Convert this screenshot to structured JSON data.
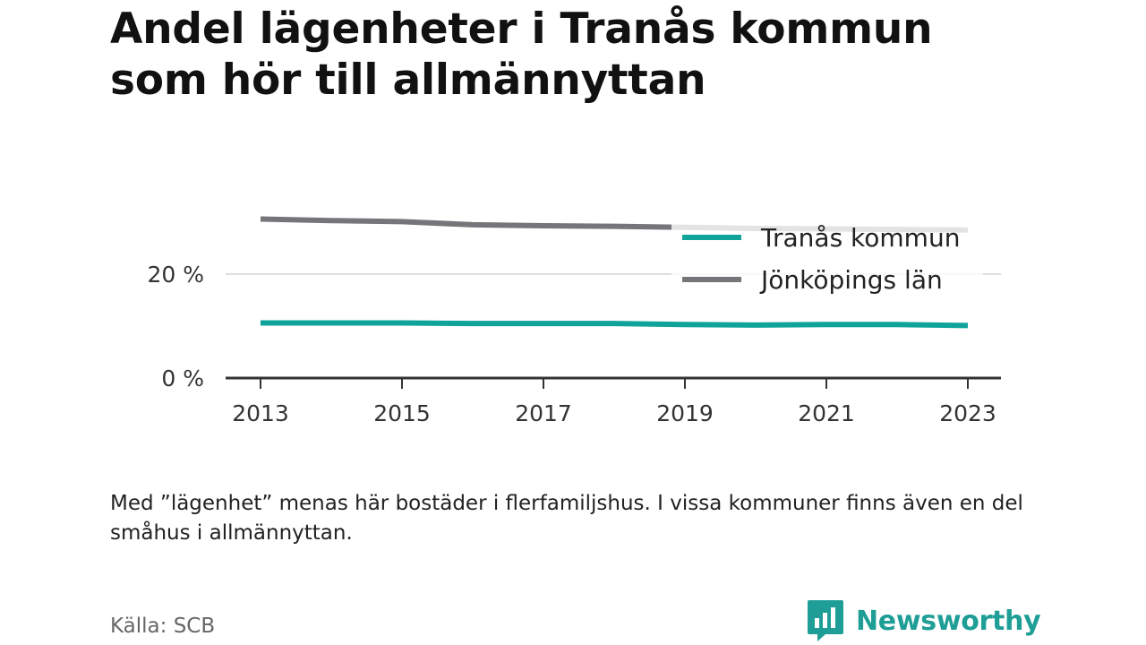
{
  "title": "Andel lägenheter i Tranås kommun som hör till allmännyttan",
  "note": "Med ”lägenhet” menas här bostäder i flerfamiljshus. I vissa kommuner finns även en del småhus i allmännyttan.",
  "source": "Källa: SCB",
  "brand": {
    "name": "Newsworthy",
    "icon": "newsworthy-logo-icon",
    "color": "#1e9e96"
  },
  "chart_data": {
    "type": "line",
    "title": "Andel lägenheter i Tranås kommun som hör till allmännyttan",
    "xlabel": "",
    "ylabel": "",
    "x": [
      2013,
      2014,
      2015,
      2016,
      2017,
      2018,
      2019,
      2020,
      2021,
      2022,
      2023
    ],
    "x_ticks": [
      "2013",
      "2015",
      "2017",
      "2019",
      "2021",
      "2023"
    ],
    "y_ticks": [
      "0 %",
      "20 %"
    ],
    "y_tick_values": [
      0,
      20
    ],
    "ylim": [
      0,
      40
    ],
    "grid": "horizontal",
    "legend_position": "top-right",
    "series": [
      {
        "name": "Tranås kommun",
        "color": "#0fa39a",
        "values": [
          10.6,
          10.6,
          10.6,
          10.5,
          10.5,
          10.5,
          10.3,
          10.2,
          10.3,
          10.3,
          10.1
        ]
      },
      {
        "name": "Jönköpings län",
        "color": "#76767a",
        "values": [
          30.6,
          30.3,
          30.1,
          29.5,
          29.3,
          29.2,
          29.0,
          28.8,
          28.7,
          28.6,
          28.5
        ]
      }
    ]
  }
}
